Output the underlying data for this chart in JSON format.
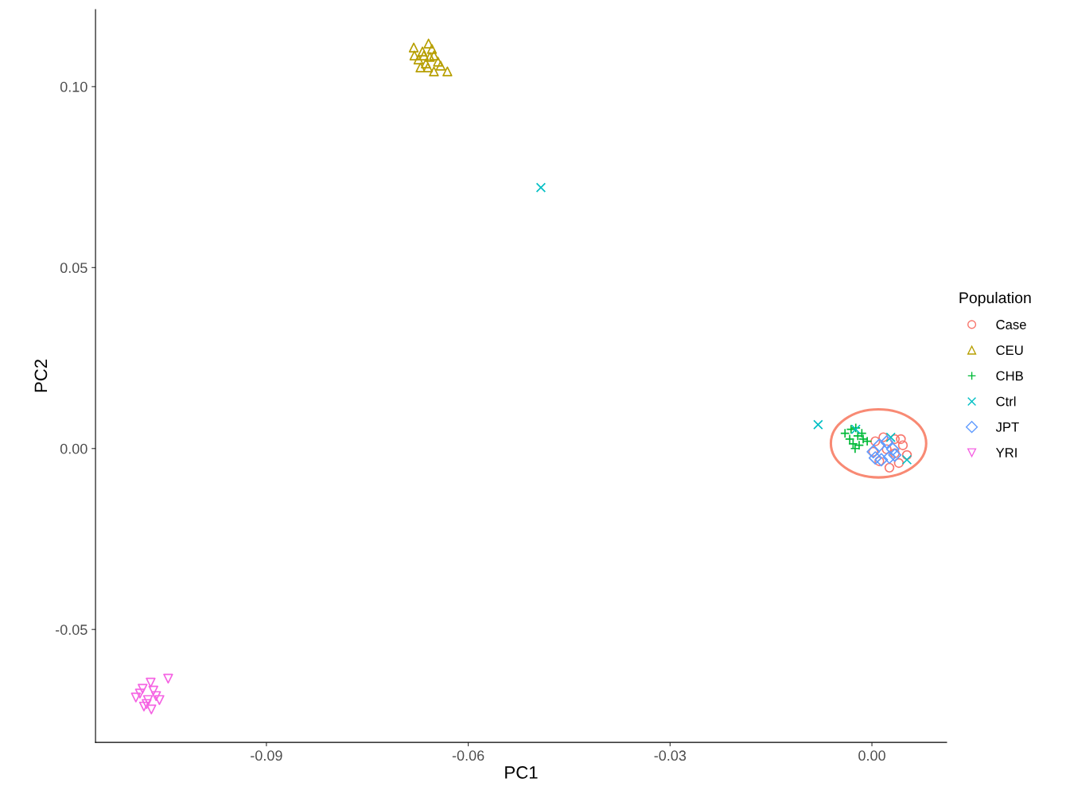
{
  "chart_data": {
    "type": "scatter",
    "xlabel": "PC1",
    "ylabel": "PC2",
    "legend_title": "Population",
    "legend": "right",
    "grid": false,
    "xlim": [
      -0.1154,
      0.0111
    ],
    "ylim": [
      -0.0812,
      0.1213
    ],
    "xticks": [
      {
        "value": -0.09,
        "label": "-0.09"
      },
      {
        "value": -0.06,
        "label": "-0.06"
      },
      {
        "value": -0.03,
        "label": "-0.03"
      },
      {
        "value": 0,
        "label": "0.00"
      }
    ],
    "yticks": [
      {
        "value": -0.05,
        "label": "-0.05"
      },
      {
        "value": 0,
        "label": "0.00"
      },
      {
        "value": 0.05,
        "label": "0.05"
      },
      {
        "value": 0.1,
        "label": "0.10"
      }
    ],
    "series": [
      {
        "name": "Case",
        "color": "#F8766D",
        "marker": "circle",
        "x": [
          0.0005,
          0.0017,
          0.0034,
          0.0046,
          0.0052,
          0.004,
          0.0026,
          0.0011,
          0.0002,
          0.0022,
          0.0034,
          0.0043
        ],
        "values": [
          0.002,
          0.0031,
          0.0026,
          0.0009,
          -0.0018,
          -0.004,
          -0.0053,
          -0.0035,
          -0.0009,
          -0.0002,
          -0.0013,
          0.0026
        ]
      },
      {
        "name": "CEU",
        "color": "#B79F00",
        "marker": "triangle",
        "x": [
          -0.0681,
          -0.0659,
          -0.0668,
          -0.0651,
          -0.0674,
          -0.0663,
          -0.0657,
          -0.0645,
          -0.0671,
          -0.0651,
          -0.0631,
          -0.068,
          -0.0666,
          -0.0654,
          -0.066,
          -0.0641
        ],
        "values": [
          0.1108,
          0.1119,
          0.1097,
          0.1086,
          0.1075,
          0.1064,
          0.1082,
          0.1069,
          0.1053,
          0.1042,
          0.1042,
          0.1086,
          0.1086,
          0.1104,
          0.1053,
          0.1058
        ]
      },
      {
        "name": "CHB",
        "color": "#00BA38",
        "marker": "plus",
        "x": [
          -0.004,
          -0.0031,
          -0.0021,
          -0.0013,
          -0.0028,
          -0.0019,
          -0.0007,
          -0.0033,
          -0.0024,
          -0.0015,
          -0.0025
        ],
        "values": [
          0.0042,
          0.0053,
          0.0035,
          0.0026,
          0.0013,
          0.0009,
          0.002,
          0.0026,
          0.0057,
          0.0042,
          0.0
        ]
      },
      {
        "name": "Ctrl",
        "color": "#00BFC4",
        "marker": "cross",
        "x": [
          -0.0492,
          -0.008,
          -0.0024,
          0.0028,
          0.0052
        ],
        "values": [
          0.0721,
          0.0066,
          0.0053,
          0.0031,
          -0.0031
        ]
      },
      {
        "name": "JPT",
        "color": "#619CFF",
        "marker": "diamond",
        "x": [
          0.0002,
          0.0011,
          0.0022,
          0.0031,
          0.0026,
          0.0014,
          0.0005,
          0.0034
        ],
        "values": [
          -0.0009,
          0.0009,
          0.0018,
          -0.0002,
          -0.0024,
          -0.0031,
          -0.0026,
          -0.0018
        ]
      },
      {
        "name": "YRI",
        "color": "#F564E3",
        "marker": "triangle_down",
        "x": [
          -0.1072,
          -0.1046,
          -0.1084,
          -0.1094,
          -0.1076,
          -0.1064,
          -0.1082,
          -0.1071,
          -0.1059,
          -0.1088,
          -0.1068,
          -0.1078
        ],
        "values": [
          -0.0647,
          -0.0636,
          -0.0664,
          -0.0688,
          -0.0695,
          -0.0684,
          -0.0713,
          -0.0721,
          -0.0695,
          -0.0677,
          -0.0669,
          -0.0706
        ]
      }
    ]
  }
}
